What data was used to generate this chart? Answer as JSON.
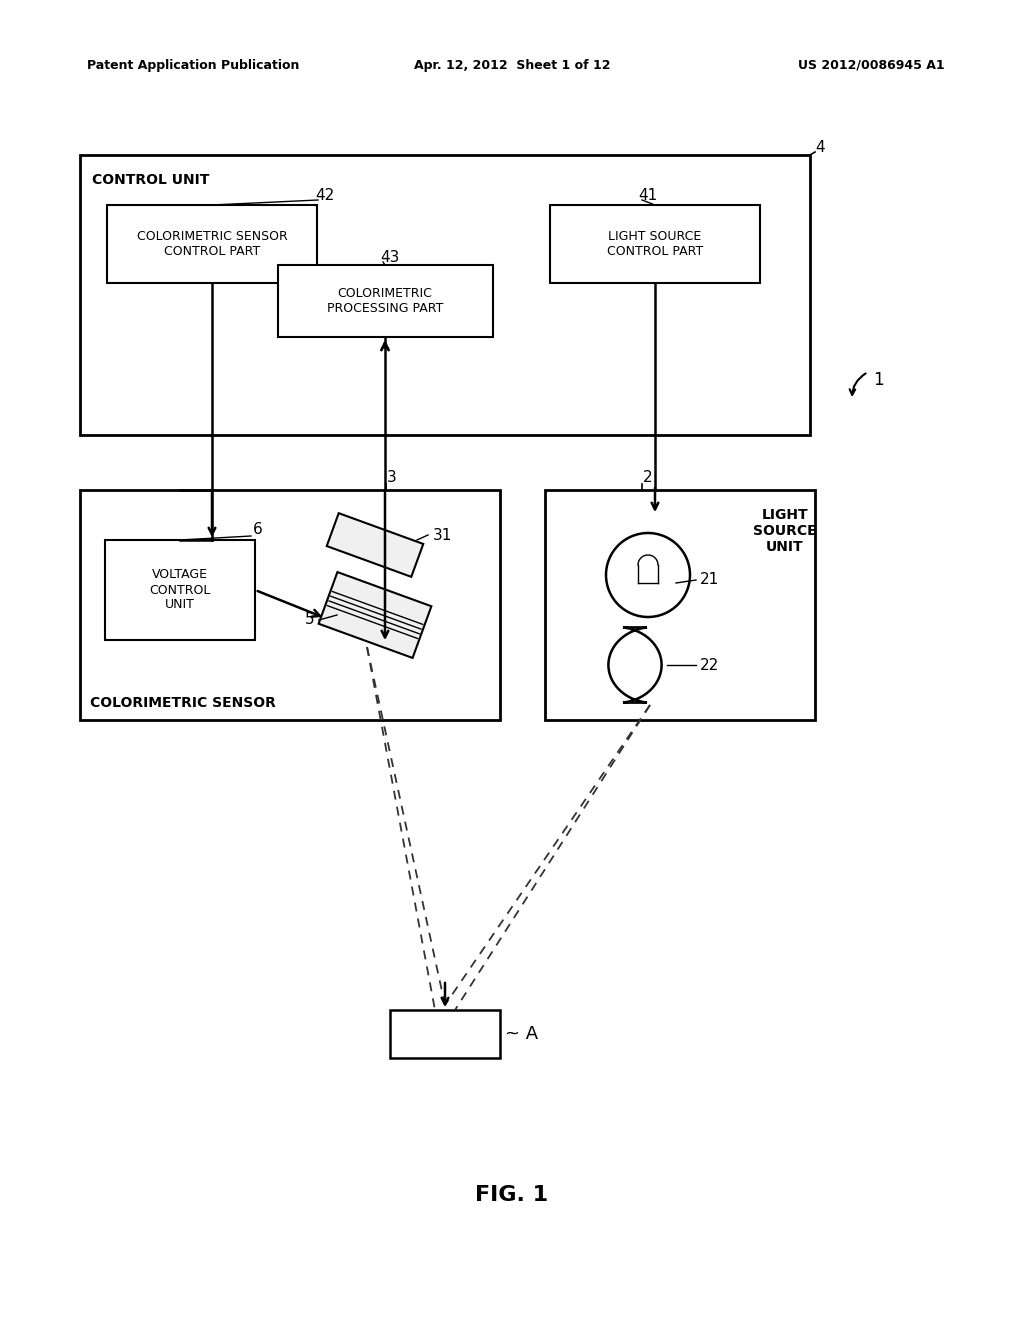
{
  "bg_color": "#ffffff",
  "header_left": "Patent Application Publication",
  "header_center": "Apr. 12, 2012  Sheet 1 of 12",
  "header_right": "US 2012/0086945 A1",
  "figure_label": "FIG. 1",
  "line_color": "#000000",
  "text_control_unit": "CONTROL UNIT",
  "text_42": "COLORIMETRIC SENSOR\nCONTROL PART",
  "text_41": "LIGHT SOURCE\nCONTROL PART",
  "text_43": "COLORIMETRIC\nPROCESSING PART",
  "text_voltage_control": "VOLTAGE\nCONTROL\nUNIT",
  "text_colorimetric_sensor": "COLORIMETRIC SENSOR",
  "text_light_source_unit": "LIGHT\nSOURCE\nUNIT"
}
